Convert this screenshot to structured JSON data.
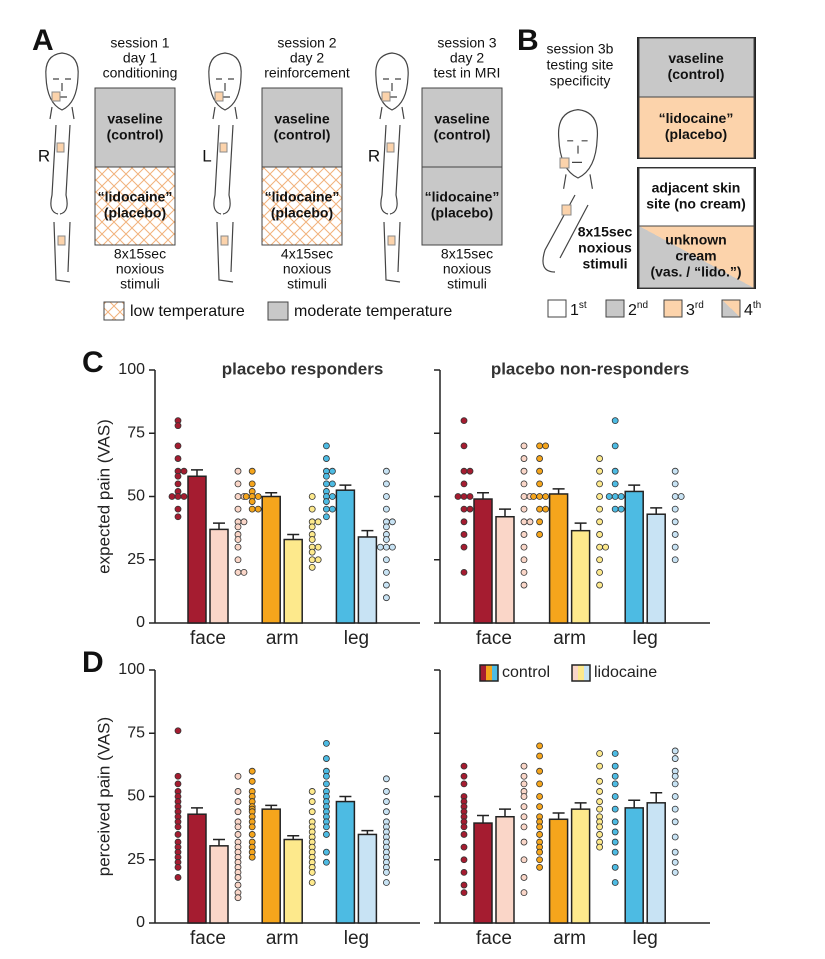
{
  "panel_a": {
    "label": "A",
    "sessions": [
      {
        "lines": [
          "session 1",
          "day 1",
          "conditioning"
        ],
        "side": "R",
        "stimuli": [
          "8x15sec",
          "noxious",
          "stimuli"
        ]
      },
      {
        "lines": [
          "session 2",
          "day 2",
          "reinforcement"
        ],
        "side": "L",
        "stimuli": [
          "4x15sec",
          "noxious",
          "stimuli"
        ]
      },
      {
        "lines": [
          "session 3",
          "day 2",
          "test in MRI"
        ],
        "side": "R",
        "stimuli": [
          "8x15sec",
          "noxious",
          "stimuli"
        ]
      }
    ],
    "box_top": [
      "vaseline",
      "(control)"
    ],
    "box_bottom": [
      "“lidocaine”",
      "(placebo)"
    ],
    "legend": [
      "low temperature",
      "moderate temperature"
    ]
  },
  "panel_b": {
    "label": "B",
    "title": [
      "session 3b",
      "testing site",
      "specificity"
    ],
    "stimuli": [
      "8x15sec",
      "noxious",
      "stimuli"
    ],
    "boxes": [
      [
        "vaseline",
        "(control)"
      ],
      [
        "“lidocaine”",
        "(placebo)"
      ],
      [
        "adjacent skin",
        "site (no cream)"
      ],
      [
        "unknown",
        "cream",
        "(vas. / “lido.”)"
      ]
    ],
    "order": [
      {
        "n": "1",
        "sup": "st"
      },
      {
        "n": "2",
        "sup": "nd"
      },
      {
        "n": "3",
        "sup": "rd"
      },
      {
        "n": "4",
        "sup": "th"
      }
    ]
  },
  "chart_data": [
    {
      "type": "bar",
      "panel": "C",
      "title": "placebo responders",
      "ylabel": "expected pain (VAS)",
      "categories": [
        "face",
        "arm",
        "leg"
      ],
      "ylim": [
        0,
        100
      ],
      "yticks": [
        0,
        25,
        50,
        75,
        100
      ],
      "show_ytick_labels": true,
      "series": [
        {
          "colors": [
            "#a51c30",
            "#f5a51c",
            "#4dbbe3"
          ],
          "values": [
            58,
            50,
            52.5
          ],
          "errors": [
            2.5,
            1.5,
            2
          ],
          "points": [
            [
              80,
              78,
              70,
              65,
              60,
              60,
              58,
              55,
              52,
              50,
              50,
              50,
              45,
              42
            ],
            [
              60,
              55,
              52,
              50,
              50,
              50,
              48,
              45,
              45
            ],
            [
              70,
              65,
              60,
              60,
              58,
              55,
              55,
              52,
              50,
              50,
              48,
              45,
              45,
              42
            ]
          ]
        },
        {
          "colors": [
            "#fad6c8",
            "#fde98c",
            "#c8e3f4"
          ],
          "values": [
            37,
            33,
            34
          ],
          "errors": [
            2.5,
            2,
            2.5
          ],
          "points": [
            [
              60,
              55,
              50,
              50,
              45,
              40,
              40,
              38,
              35,
              33,
              30,
              25,
              20,
              20
            ],
            [
              50,
              45,
              40,
              40,
              38,
              35,
              33,
              30,
              30,
              28,
              25,
              25,
              22
            ],
            [
              60,
              55,
              50,
              45,
              40,
              40,
              38,
              35,
              33,
              30,
              30,
              30,
              25,
              20,
              15,
              10
            ]
          ]
        }
      ]
    },
    {
      "type": "bar",
      "title": "placebo non-responders",
      "categories": [
        "face",
        "arm",
        "leg"
      ],
      "ylim": [
        0,
        100
      ],
      "yticks": [
        0,
        25,
        50,
        75,
        100
      ],
      "show_ytick_labels": false,
      "series": [
        {
          "colors": [
            "#a51c30",
            "#f5a51c",
            "#4dbbe3"
          ],
          "values": [
            49,
            51,
            52
          ],
          "errors": [
            2.5,
            2,
            2.5
          ],
          "points": [
            [
              80,
              70,
              60,
              60,
              55,
              50,
              50,
              50,
              45,
              45,
              40,
              35,
              30,
              20
            ],
            [
              70,
              70,
              65,
              60,
              55,
              50,
              50,
              50,
              45,
              45,
              40,
              35
            ],
            [
              80,
              70,
              60,
              55,
              50,
              50,
              50,
              45,
              45
            ]
          ]
        },
        {
          "colors": [
            "#fad6c8",
            "#fde98c",
            "#c8e3f4"
          ],
          "values": [
            42,
            36.5,
            43
          ],
          "errors": [
            3,
            3,
            2.5
          ],
          "points": [
            [
              70,
              65,
              60,
              55,
              50,
              50,
              45,
              40,
              40,
              35,
              30,
              25,
              20,
              15
            ],
            [
              65,
              60,
              55,
              50,
              45,
              40,
              35,
              30,
              30,
              25,
              20,
              15
            ],
            [
              60,
              55,
              50,
              50,
              45,
              40,
              35,
              30,
              25
            ]
          ]
        }
      ]
    },
    {
      "type": "bar",
      "panel": "D",
      "ylabel": "perceived pain (VAS)",
      "categories": [
        "face",
        "arm",
        "leg"
      ],
      "ylim": [
        0,
        100
      ],
      "yticks": [
        0,
        25,
        50,
        75,
        100
      ],
      "show_ytick_labels": true,
      "series": [
        {
          "colors": [
            "#a51c30",
            "#f5a51c",
            "#4dbbe3"
          ],
          "values": [
            43,
            45,
            48
          ],
          "errors": [
            2.5,
            1.5,
            2
          ],
          "points": [
            [
              76,
              58,
              55,
              52,
              50,
              48,
              46,
              44,
              42,
              40,
              38,
              35,
              32,
              30,
              28,
              26,
              24,
              22,
              18
            ],
            [
              60,
              56,
              52,
              50,
              48,
              46,
              45,
              44,
              42,
              40,
              38,
              35,
              32,
              30,
              28,
              26
            ],
            [
              71,
              65,
              60,
              58,
              55,
              52,
              50,
              48,
              46,
              44,
              42,
              40,
              38,
              35,
              28,
              24
            ]
          ]
        },
        {
          "colors": [
            "#fad6c8",
            "#fde98c",
            "#c8e3f4"
          ],
          "values": [
            30.5,
            33,
            35
          ],
          "errors": [
            2.5,
            1.5,
            1.5
          ],
          "points": [
            [
              58,
              52,
              48,
              44,
              40,
              38,
              35,
              32,
              30,
              28,
              26,
              24,
              22,
              20,
              18,
              15,
              12,
              10
            ],
            [
              52,
              48,
              44,
              40,
              38,
              36,
              34,
              32,
              30,
              28,
              26,
              24,
              22,
              20,
              16
            ],
            [
              57,
              52,
              48,
              44,
              40,
              38,
              36,
              34,
              32,
              30,
              28,
              26,
              24,
              22,
              20,
              16
            ]
          ]
        }
      ]
    },
    {
      "type": "bar",
      "legend": "top",
      "categories": [
        "face",
        "arm",
        "leg"
      ],
      "ylim": [
        0,
        100
      ],
      "yticks": [
        0,
        25,
        50,
        75,
        100
      ],
      "show_ytick_labels": false,
      "series": [
        {
          "name": "control",
          "colors": [
            "#a51c30",
            "#f5a51c",
            "#4dbbe3"
          ],
          "values": [
            39.5,
            41,
            45.5
          ],
          "errors": [
            3,
            2.5,
            3
          ],
          "points": [
            [
              62,
              58,
              55,
              50,
              48,
              46,
              44,
              42,
              40,
              38,
              35,
              30,
              25,
              20,
              15,
              12
            ],
            [
              70,
              66,
              60,
              55,
              50,
              46,
              42,
              40,
              38,
              35,
              32,
              30,
              28,
              25,
              22
            ],
            [
              67,
              62,
              58,
              55,
              50,
              45,
              40,
              36,
              32,
              28,
              22,
              16
            ]
          ]
        },
        {
          "name": "lidocaine",
          "colors": [
            "#fad6c8",
            "#fde98c",
            "#c8e3f4"
          ],
          "values": [
            42,
            45,
            47.5
          ],
          "errors": [
            3,
            2.5,
            4
          ],
          "points": [
            [
              62,
              58,
              55,
              52,
              50,
              46,
              42,
              38,
              32,
              25,
              18,
              12
            ],
            [
              67,
              62,
              56,
              52,
              48,
              45,
              42,
              40,
              38,
              35,
              32,
              30
            ],
            [
              68,
              65,
              60,
              58,
              55,
              50,
              45,
              40,
              34,
              28,
              24,
              20
            ]
          ]
        }
      ]
    }
  ]
}
